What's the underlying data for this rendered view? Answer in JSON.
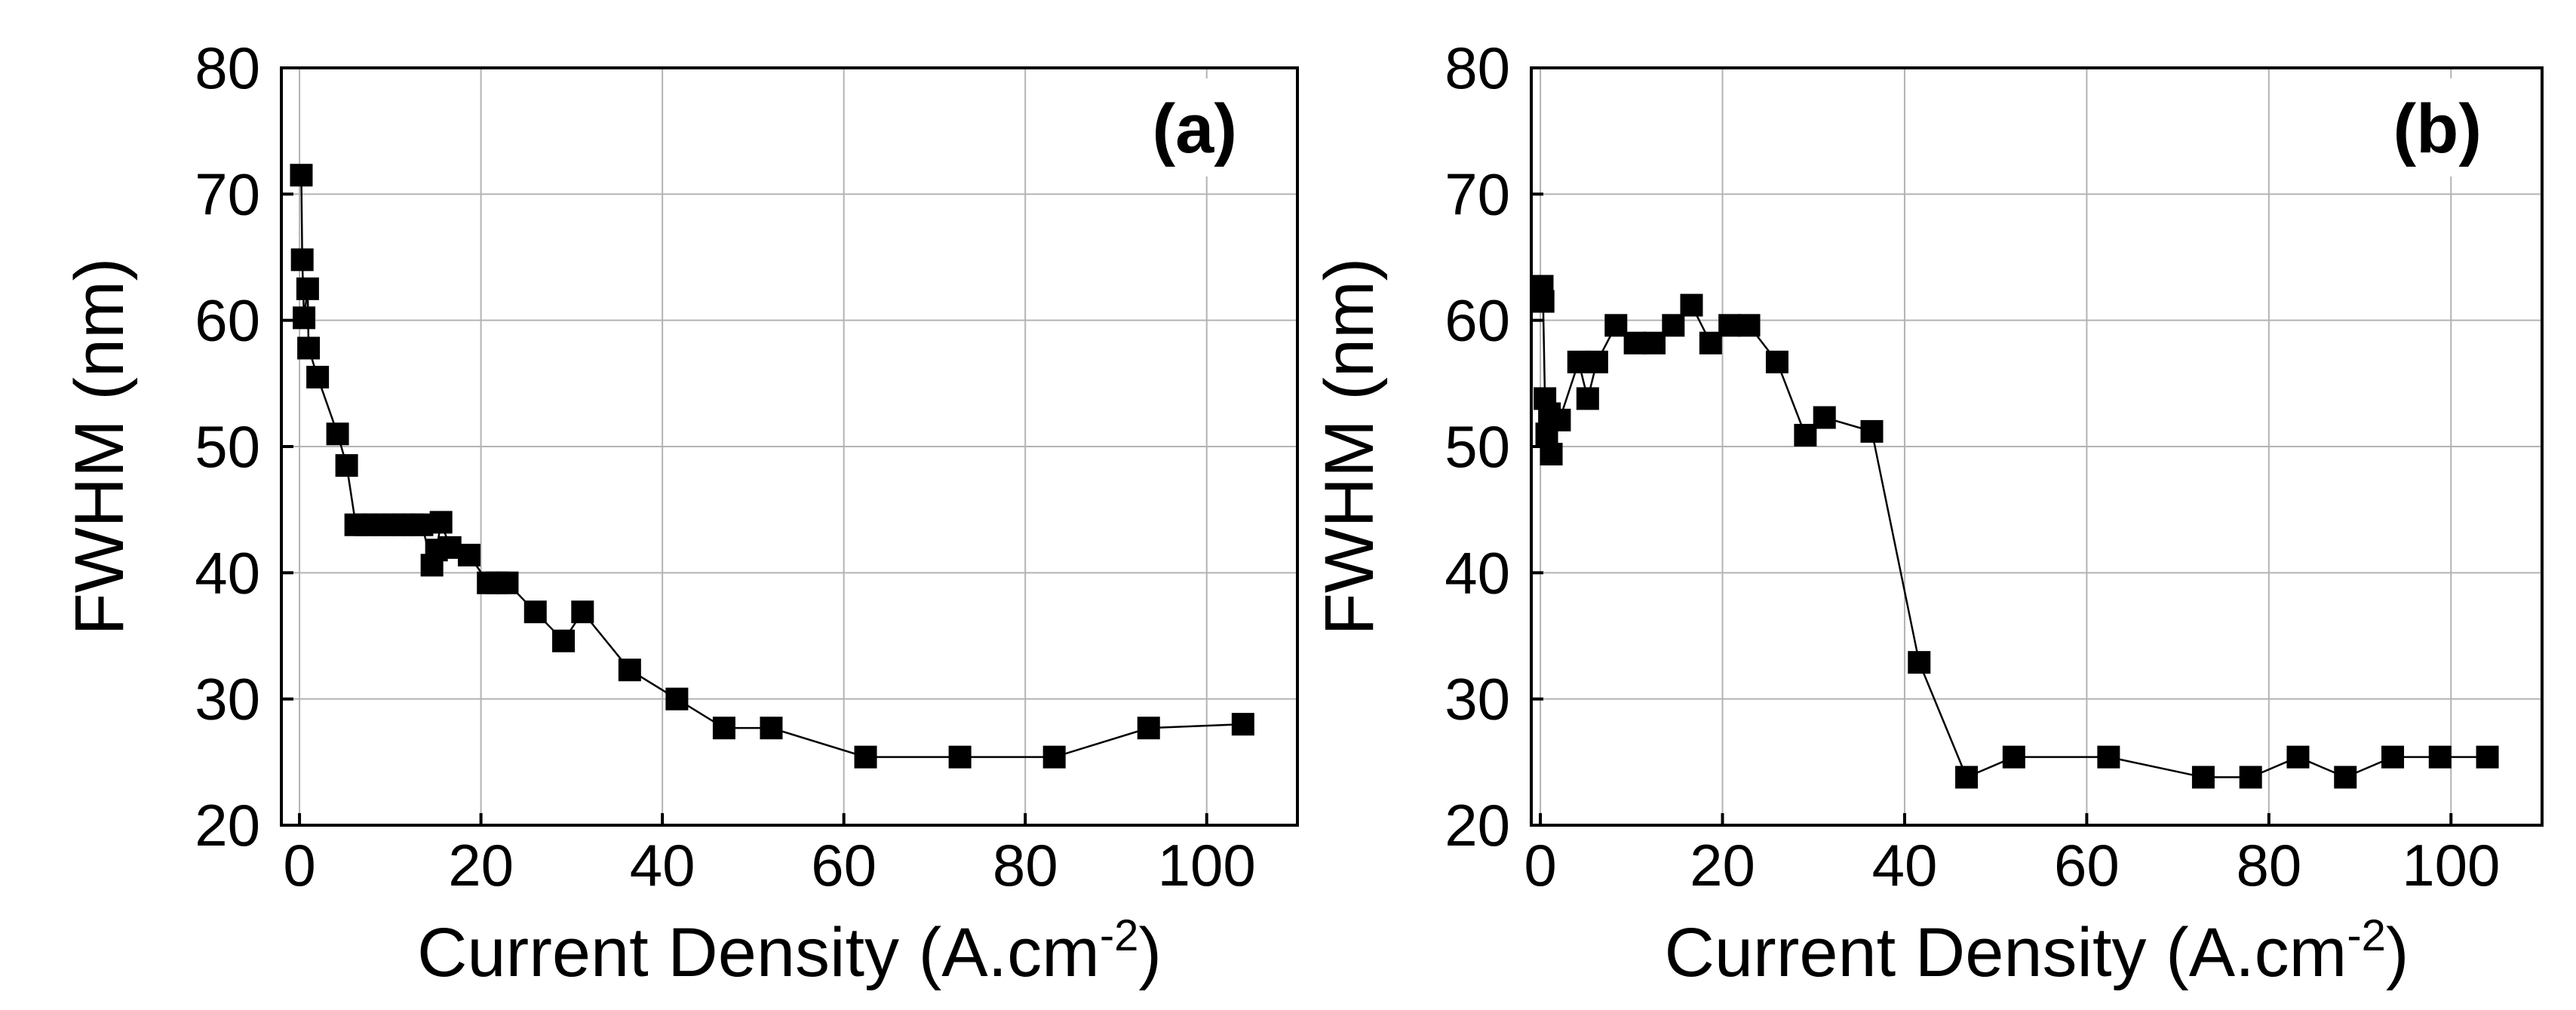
{
  "chart_data": [
    {
      "type": "scatter",
      "panel_label": "(a)",
      "xlabel": "Current Density (A.cm",
      "xlabel_superscript": "-2",
      "xlabel_close": ")",
      "ylabel": "FWHM (nm)",
      "xlim": [
        -2,
        110
      ],
      "ylim": [
        20,
        80
      ],
      "xticks": [
        "0",
        "20",
        "40",
        "60",
        "80",
        "100"
      ],
      "yticks": [
        "20",
        "30",
        "40",
        "50",
        "60",
        "70",
        "80"
      ],
      "grid": true,
      "connected": true,
      "marker": "square",
      "color": "#000000",
      "points": [
        [
          0.2,
          71.5
        ],
        [
          0.3,
          64.8
        ],
        [
          0.5,
          60.2
        ],
        [
          0.9,
          62.5
        ],
        [
          1.0,
          57.8
        ],
        [
          2.0,
          55.5
        ],
        [
          4.2,
          51.0
        ],
        [
          5.2,
          48.5
        ],
        [
          6.2,
          43.8
        ],
        [
          7.3,
          43.8
        ],
        [
          8.3,
          43.8
        ],
        [
          9.4,
          43.8
        ],
        [
          10.4,
          43.8
        ],
        [
          11.5,
          43.8
        ],
        [
          12.5,
          43.8
        ],
        [
          13.5,
          43.8
        ],
        [
          14.6,
          40.6
        ],
        [
          15.1,
          41.8
        ],
        [
          15.6,
          44.0
        ],
        [
          16.6,
          42.0
        ],
        [
          18.7,
          41.4
        ],
        [
          20.8,
          39.2
        ],
        [
          21.8,
          39.2
        ],
        [
          22.9,
          39.2
        ],
        [
          26.0,
          36.9
        ],
        [
          29.1,
          34.6
        ],
        [
          31.2,
          36.9
        ],
        [
          36.4,
          32.3
        ],
        [
          41.6,
          30.0
        ],
        [
          46.8,
          27.7
        ],
        [
          52.0,
          27.7
        ],
        [
          62.4,
          25.4
        ],
        [
          72.8,
          25.4
        ],
        [
          83.2,
          25.4
        ],
        [
          93.6,
          27.7
        ],
        [
          104.0,
          28.0
        ]
      ]
    },
    {
      "type": "scatter",
      "panel_label": "(b)",
      "xlabel": "Current Density (A.cm",
      "xlabel_superscript": "-2",
      "xlabel_close": ")",
      "ylabel": "FWHM (nm)",
      "xlim": [
        -1,
        110
      ],
      "ylim": [
        20,
        80
      ],
      "xticks": [
        "0",
        "20",
        "40",
        "60",
        "80",
        "100"
      ],
      "yticks": [
        "20",
        "30",
        "40",
        "50",
        "60",
        "70",
        "80"
      ],
      "grid": true,
      "connected": true,
      "marker": "square",
      "color": "#000000",
      "points": [
        [
          0.2,
          62.7
        ],
        [
          0.3,
          61.5
        ],
        [
          0.5,
          53.8
        ],
        [
          0.7,
          51.0
        ],
        [
          1.0,
          52.6
        ],
        [
          1.2,
          49.4
        ],
        [
          2.1,
          52.1
        ],
        [
          4.2,
          56.7
        ],
        [
          5.2,
          53.8
        ],
        [
          6.2,
          56.7
        ],
        [
          8.3,
          59.6
        ],
        [
          10.4,
          58.2
        ],
        [
          12.5,
          58.2
        ],
        [
          14.6,
          59.6
        ],
        [
          16.6,
          61.2
        ],
        [
          18.7,
          58.2
        ],
        [
          20.8,
          59.6
        ],
        [
          22.9,
          59.6
        ],
        [
          26.0,
          56.7
        ],
        [
          29.1,
          50.9
        ],
        [
          31.2,
          52.3
        ],
        [
          36.4,
          51.2
        ],
        [
          41.6,
          32.9
        ],
        [
          46.8,
          23.8
        ],
        [
          52.0,
          25.4
        ],
        [
          62.4,
          25.4
        ],
        [
          72.8,
          23.8
        ],
        [
          78.0,
          23.8
        ],
        [
          83.2,
          25.4
        ],
        [
          88.4,
          23.8
        ],
        [
          93.6,
          25.4
        ],
        [
          98.8,
          25.4
        ],
        [
          104.0,
          25.4
        ]
      ]
    }
  ]
}
